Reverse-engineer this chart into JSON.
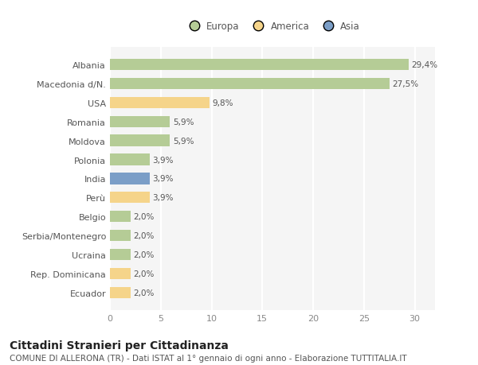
{
  "categories": [
    "Albania",
    "Macedonia d/N.",
    "USA",
    "Romania",
    "Moldova",
    "Polonia",
    "India",
    "Perù",
    "Belgio",
    "Serbia/Montenegro",
    "Ucraina",
    "Rep. Dominicana",
    "Ecuador"
  ],
  "values": [
    29.4,
    27.5,
    9.8,
    5.9,
    5.9,
    3.9,
    3.9,
    3.9,
    2.0,
    2.0,
    2.0,
    2.0,
    2.0
  ],
  "labels": [
    "29,4%",
    "27,5%",
    "9,8%",
    "5,9%",
    "5,9%",
    "3,9%",
    "3,9%",
    "3,9%",
    "2,0%",
    "2,0%",
    "2,0%",
    "2,0%",
    "2,0%"
  ],
  "continent": [
    "Europa",
    "Europa",
    "America",
    "Europa",
    "Europa",
    "Europa",
    "Asia",
    "America",
    "Europa",
    "Europa",
    "Europa",
    "America",
    "America"
  ],
  "colors": {
    "Europa": "#b5cc96",
    "America": "#f5d48a",
    "Asia": "#7b9ec7"
  },
  "background_color": "#ffffff",
  "plot_bg_color": "#f5f5f5",
  "grid_color": "#ffffff",
  "title": "Cittadini Stranieri per Cittadinanza",
  "subtitle": "COMUNE DI ALLERONA (TR) - Dati ISTAT al 1° gennaio di ogni anno - Elaborazione TUTTITALIA.IT",
  "xlim": [
    0,
    32
  ],
  "xticks": [
    0,
    5,
    10,
    15,
    20,
    25,
    30
  ],
  "bar_height": 0.6,
  "label_fontsize": 7.5,
  "title_fontsize": 10,
  "subtitle_fontsize": 7.5,
  "ytick_fontsize": 8,
  "xtick_fontsize": 8
}
